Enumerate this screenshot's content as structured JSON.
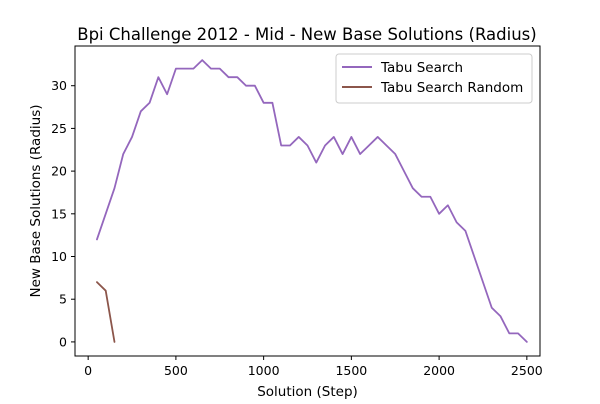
{
  "chart_data": {
    "type": "line",
    "title": "Bpi Challenge 2012 - Mid - New Base Solutions (Radius)",
    "xlabel": "Solution (Step)",
    "ylabel": "New Base Solutions (Radius)",
    "xlim": [
      -75,
      2575
    ],
    "ylim": [
      -1.65,
      34.65
    ],
    "xticks": [
      0,
      500,
      1000,
      1500,
      2000,
      2500
    ],
    "yticks": [
      0,
      5,
      10,
      15,
      20,
      25,
      30
    ],
    "grid": false,
    "legend_position": "top-right",
    "series": [
      {
        "name": "Tabu Search",
        "color": "#9467bd",
        "x": [
          50,
          100,
          150,
          200,
          250,
          300,
          350,
          400,
          450,
          500,
          550,
          600,
          650,
          700,
          750,
          800,
          850,
          900,
          950,
          1000,
          1050,
          1100,
          1150,
          1200,
          1250,
          1300,
          1350,
          1400,
          1450,
          1500,
          1550,
          1600,
          1650,
          1700,
          1750,
          1800,
          1850,
          1900,
          1950,
          2000,
          2050,
          2100,
          2150,
          2200,
          2250,
          2300,
          2350,
          2400,
          2450,
          2500
        ],
        "y": [
          12,
          15,
          18,
          22,
          24,
          27,
          28,
          31,
          29,
          32,
          32,
          32,
          33,
          32,
          32,
          31,
          31,
          30,
          30,
          28,
          28,
          23,
          23,
          24,
          23,
          21,
          23,
          24,
          22,
          24,
          22,
          23,
          24,
          23,
          22,
          20,
          18,
          17,
          17,
          15,
          16,
          14,
          13,
          10,
          7,
          4,
          3,
          1,
          1,
          0
        ]
      },
      {
        "name": "Tabu Search Random",
        "color": "#8c564b",
        "x": [
          50,
          100,
          150
        ],
        "y": [
          7,
          6,
          0
        ]
      }
    ]
  }
}
